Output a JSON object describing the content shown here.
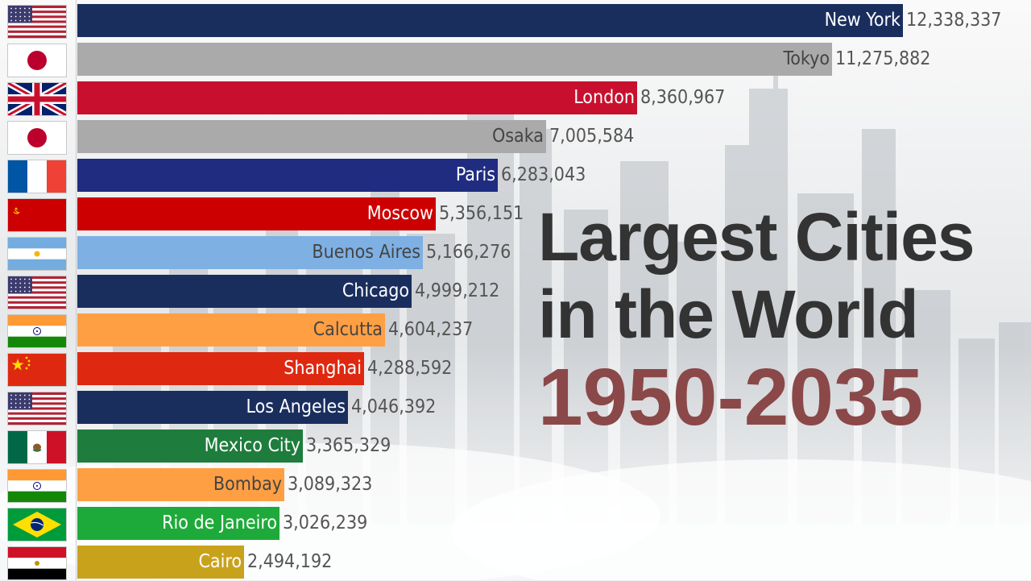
{
  "title": {
    "line1": "Largest Cities",
    "line2": "in the World",
    "years": "1950-2035"
  },
  "colors": {
    "usa": "#1a2e5e",
    "japan": "#aaaaaa",
    "uk": "#c8102e",
    "france": "#1f2c80",
    "ussr": "#cc0000",
    "argentina": "#7eb0e3",
    "india": "#ff9f44",
    "china": "#de2910",
    "mexico": "#1e7d3c",
    "brazil": "#1eaa3a",
    "egypt": "#c9a21c",
    "years_title": "#8b4848"
  },
  "chart_data": {
    "type": "bar",
    "orientation": "horizontal",
    "categories": [
      "New York",
      "Tokyo",
      "London",
      "Osaka",
      "Paris",
      "Moscow",
      "Buenos Aires",
      "Chicago",
      "Calcutta",
      "Shanghai",
      "Los Angeles",
      "Mexico City",
      "Bombay",
      "Rio de Janeiro",
      "Cairo"
    ],
    "values": [
      12338337,
      11275882,
      8360967,
      7005584,
      6283043,
      5356151,
      5166276,
      4999212,
      4604237,
      4288592,
      4046392,
      3365329,
      3089323,
      3026239,
      2494192
    ],
    "value_labels": [
      "12,338,337",
      "11,275,882",
      "8,360,967",
      "7,005,584",
      "6,283,043",
      "5,356,151",
      "5,166,276",
      "4,999,212",
      "4,604,237",
      "4,288,592",
      "4,046,392",
      "3,365,329",
      "3,089,323",
      "3,026,239",
      "2,494,192"
    ],
    "countries": [
      "usa",
      "japan",
      "uk",
      "japan",
      "france",
      "ussr",
      "argentina",
      "usa",
      "india",
      "china",
      "usa",
      "mexico",
      "india",
      "brazil",
      "egypt"
    ],
    "xlim": [
      0,
      12338337
    ],
    "grid": false,
    "legend": "none"
  }
}
